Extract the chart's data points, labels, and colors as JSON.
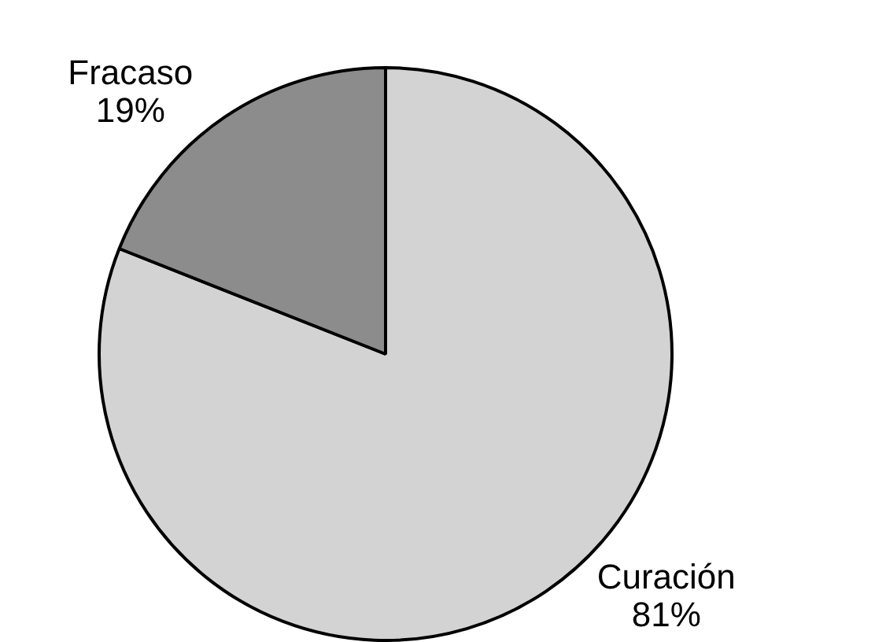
{
  "chart_data": {
    "type": "pie",
    "categories": [
      "Curación",
      "Fracaso"
    ],
    "values": [
      81,
      19
    ],
    "colors": [
      "#d3d3d3",
      "#8c8c8c"
    ],
    "value_labels": [
      "81%",
      "19%"
    ]
  }
}
